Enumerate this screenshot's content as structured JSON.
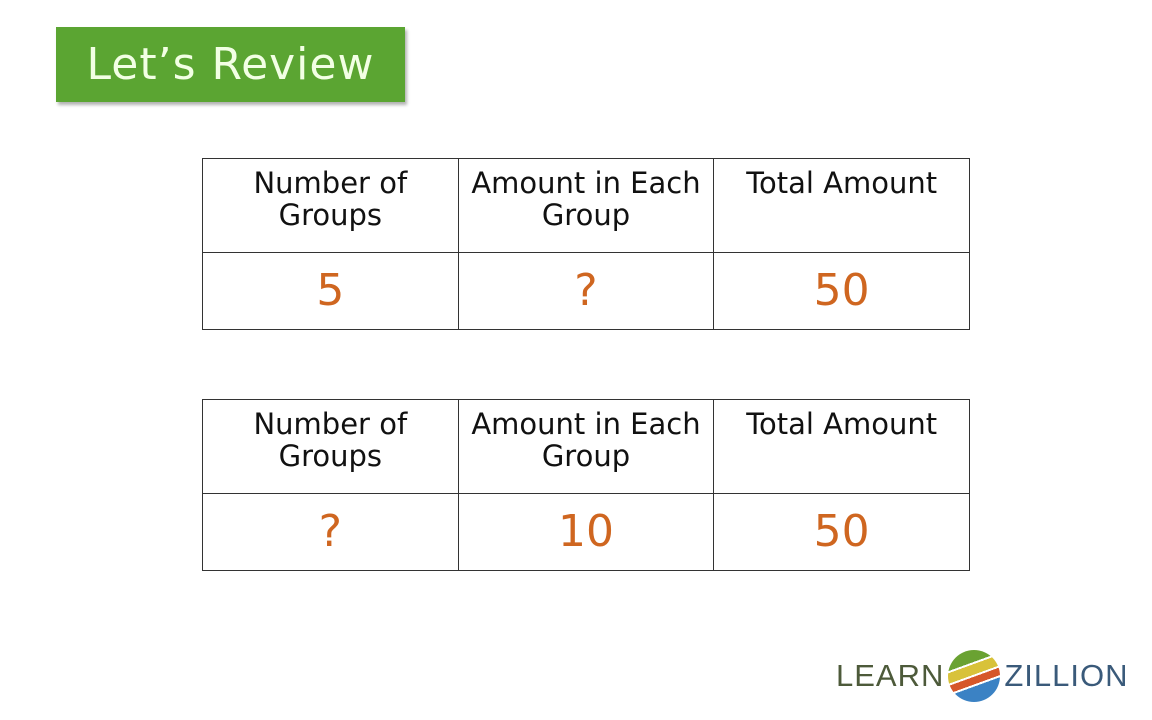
{
  "banner": {
    "title": "Let’s Review"
  },
  "tables": [
    {
      "headers": [
        "Number of Groups",
        "Amount in Each Group",
        "Total Amount"
      ],
      "values": [
        "5",
        "?",
        "50"
      ]
    },
    {
      "headers": [
        "Number of Groups",
        "Amount in Each Group",
        "Total Amount"
      ],
      "values": [
        "?",
        "10",
        "50"
      ]
    }
  ],
  "logo": {
    "left": "LEARN",
    "right": "ZILLION"
  },
  "colors": {
    "banner": "#5ba532",
    "answer": "#cf6620"
  }
}
